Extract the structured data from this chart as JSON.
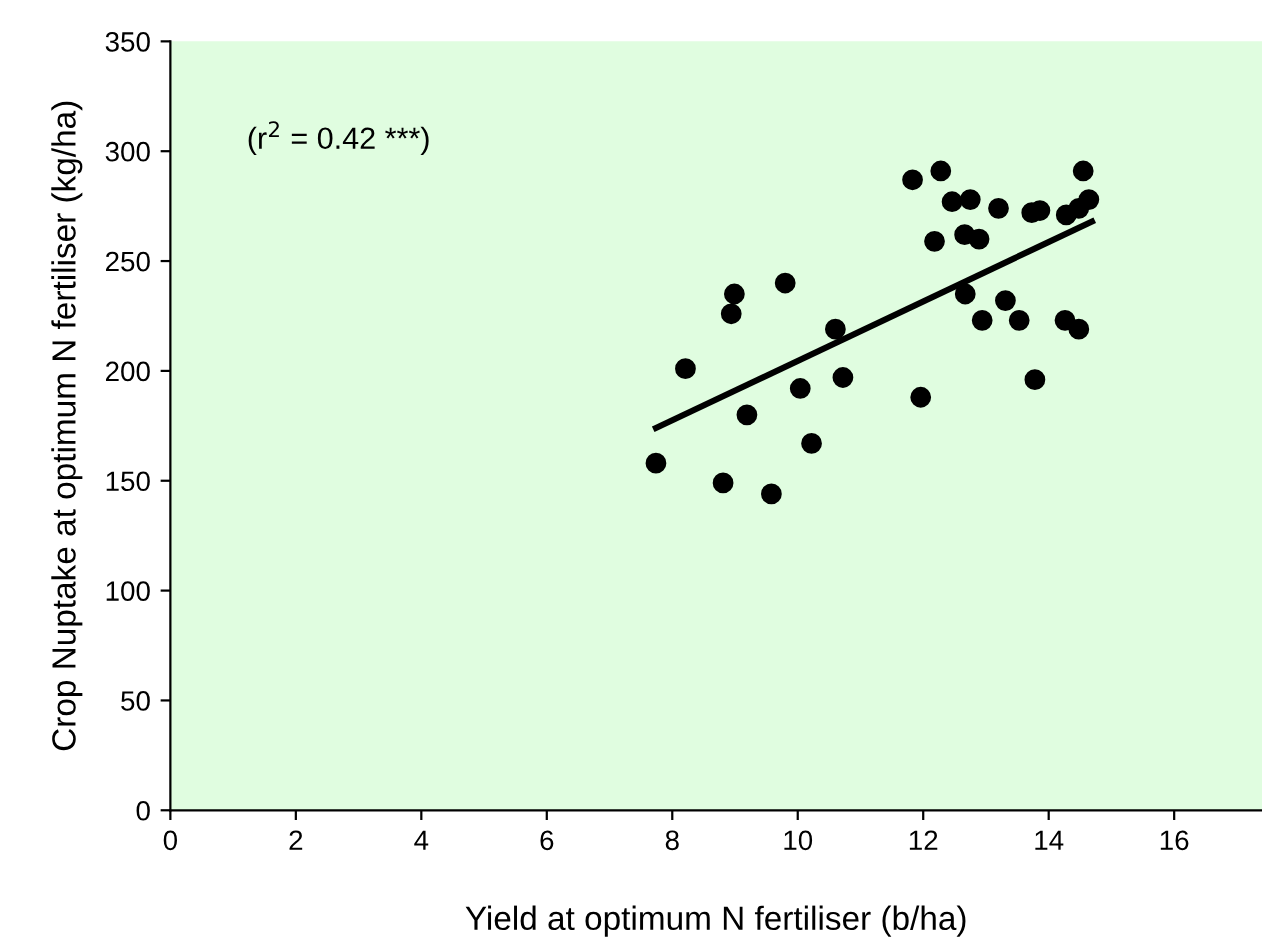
{
  "chart_data": {
    "type": "scatter",
    "xlabel": "Yield at optimum N fertiliser (b/ha)",
    "ylabel": "Crop Nuptake at optimum N fertiliser (kg/ha)",
    "annotations": [
      "(r$^{2}$ = 0.42 ***)"
    ],
    "xlim": [
      0,
      17.4
    ],
    "ylim": [
      0,
      350
    ],
    "xticks": [
      0,
      2,
      4,
      6,
      8,
      10,
      12,
      14,
      16
    ],
    "yticks": [
      0,
      50,
      100,
      150,
      200,
      250,
      300,
      350
    ],
    "grid": false,
    "legend": false,
    "marker": "circle",
    "series": [
      {
        "color": "#000000",
        "x": [
          7.74,
          8.81,
          9.58,
          8.21,
          8.99,
          8.94,
          9.8,
          10.6,
          10.04,
          10.72,
          9.19,
          10.22,
          11.96,
          11.83,
          12.28,
          12.46,
          12.18,
          12.75,
          13.2,
          12.66,
          12.89,
          13.73,
          13.86,
          14.28,
          14.48,
          14.64,
          14.55,
          12.67,
          13.31,
          12.94,
          13.53,
          14.26,
          14.48,
          13.78
        ],
        "values": [
          158,
          149,
          144,
          201,
          235,
          226,
          240,
          219,
          192,
          197,
          180,
          167,
          188,
          287,
          291,
          277,
          259,
          278,
          274,
          262,
          260,
          272,
          273,
          271,
          274,
          278,
          291,
          235,
          232,
          223,
          223,
          223,
          219,
          196
        ]
      },
      {
        "type": "line",
        "color": "#000000",
        "x": [
          7.74,
          14.69
        ],
        "values": [
          174,
          268
        ],
        "marker": "none",
        "line_style": "solid"
      }
    ]
  }
}
